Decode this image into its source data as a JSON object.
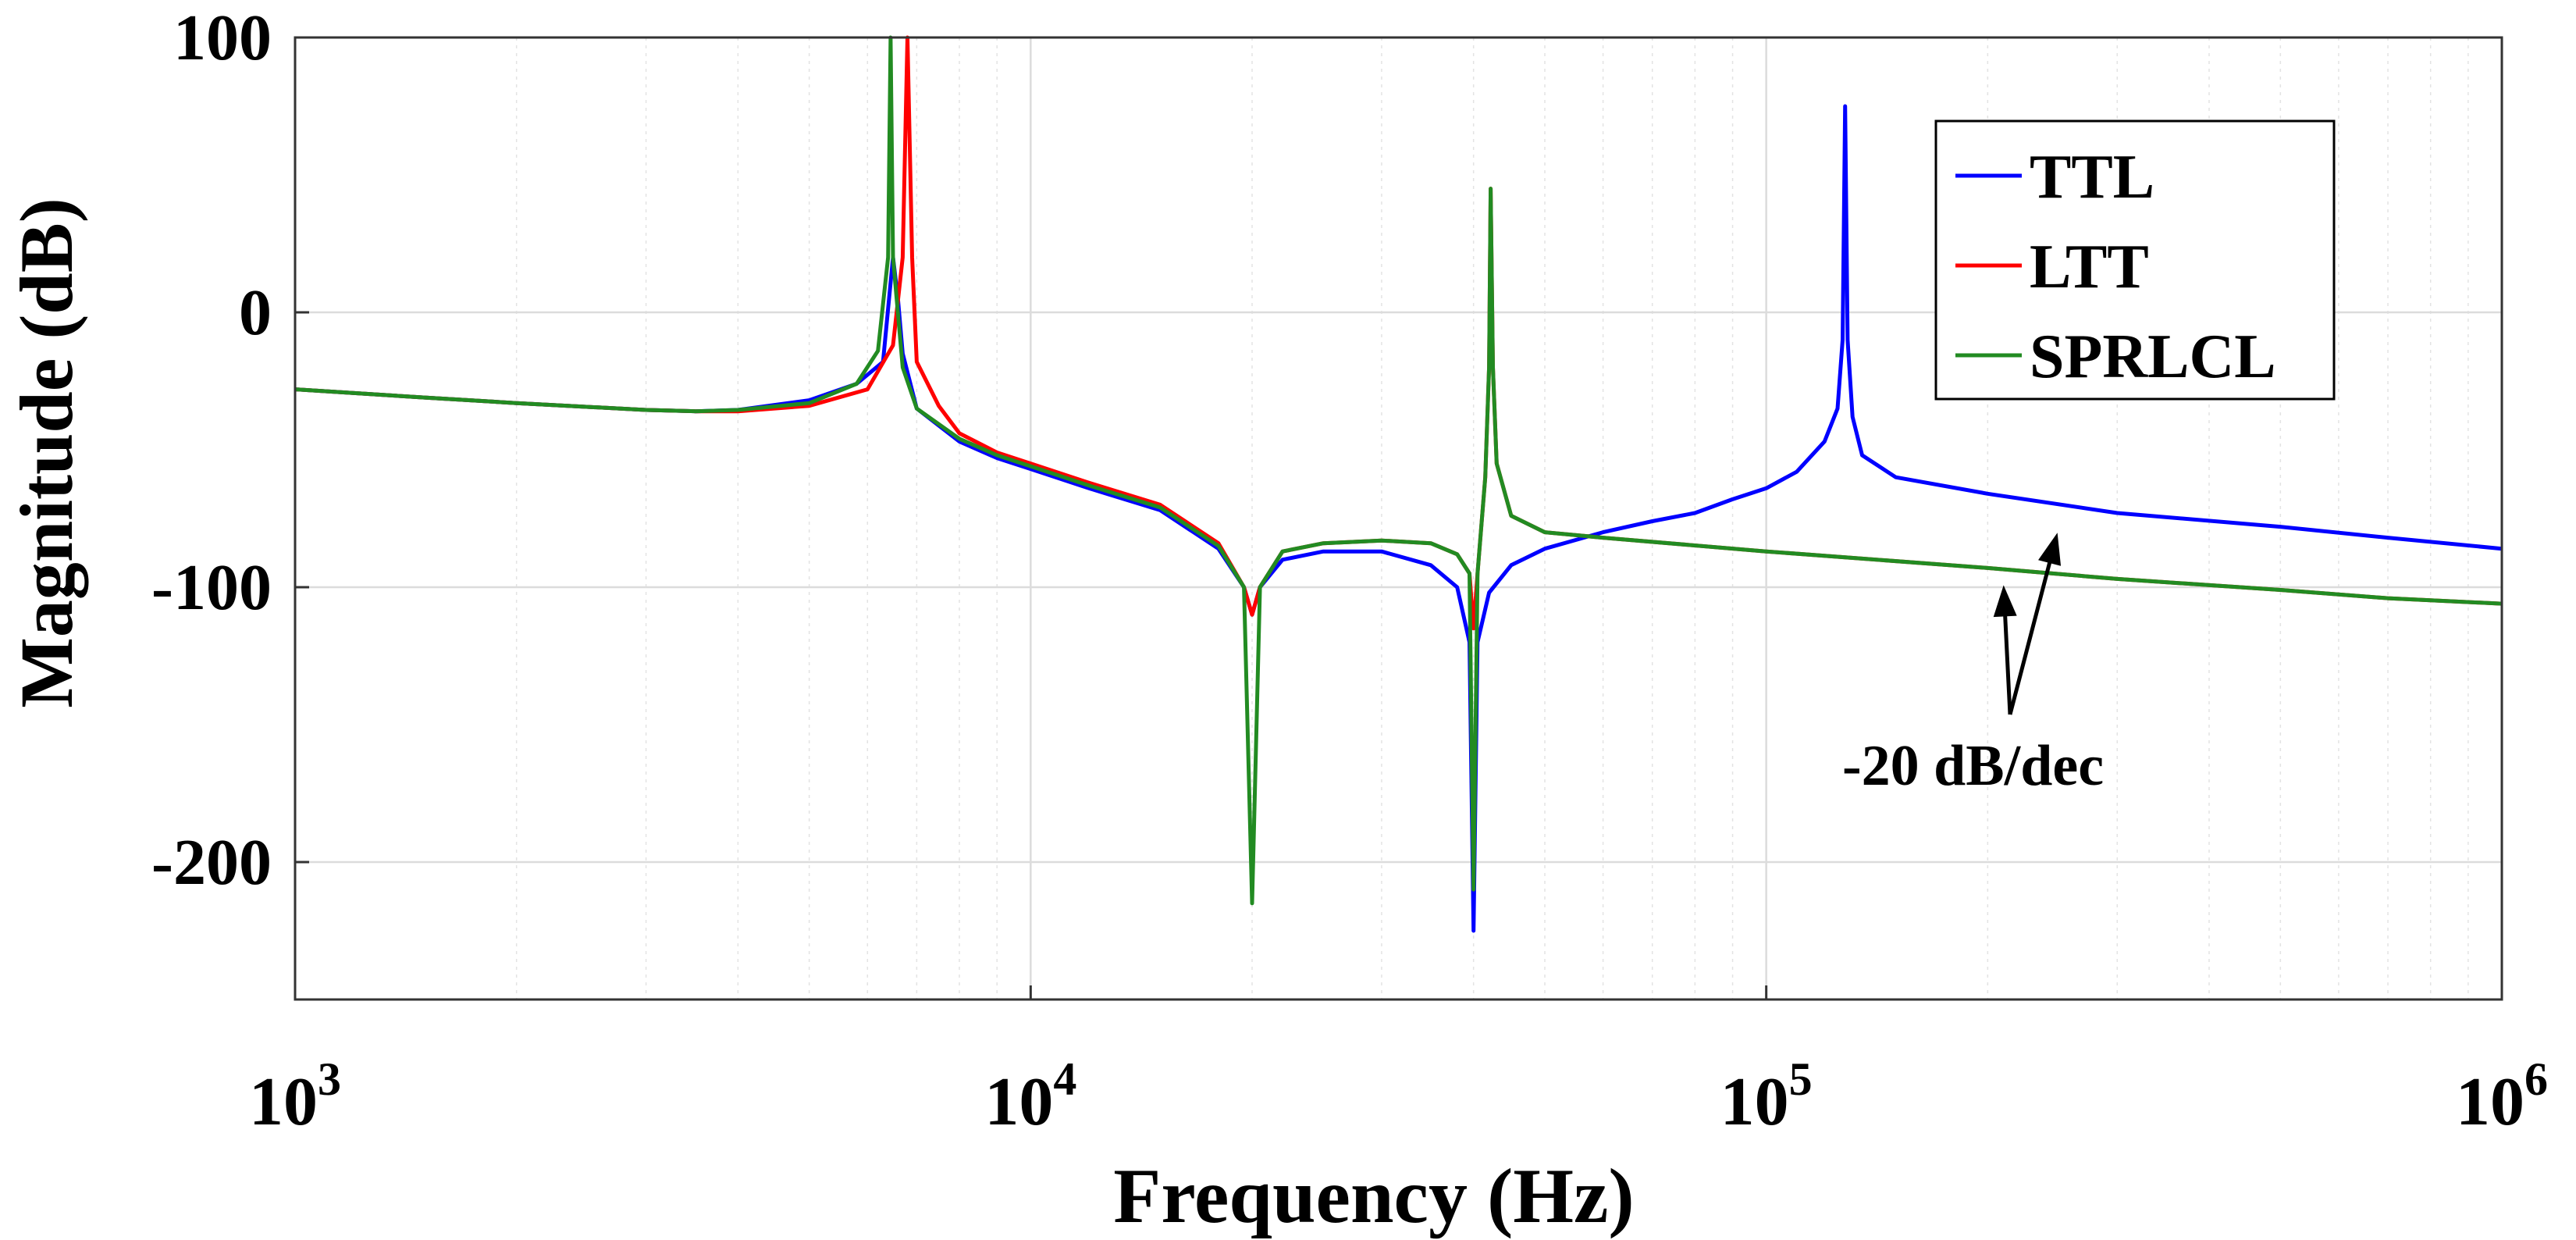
{
  "chart_data": {
    "type": "line",
    "title": "",
    "xlabel": "Frequency (Hz)",
    "ylabel": "Magnitude (dB)",
    "xscale": "log",
    "xlim": [
      1000,
      1000000
    ],
    "ylim": [
      -250,
      100
    ],
    "grid": true,
    "legend_position": "top-right",
    "x_ticks": [
      {
        "value": 1000,
        "base": "10",
        "exp": "3"
      },
      {
        "value": 10000,
        "base": "10",
        "exp": "4"
      },
      {
        "value": 100000,
        "base": "10",
        "exp": "5"
      },
      {
        "value": 1000000,
        "base": "10",
        "exp": "6"
      }
    ],
    "y_ticks": [
      {
        "value": 100,
        "label": "100"
      },
      {
        "value": 0,
        "label": "0"
      },
      {
        "value": -100,
        "label": "-100"
      },
      {
        "value": -200,
        "label": "-200"
      }
    ],
    "series": [
      {
        "name": "TTL",
        "color": "#0000ff",
        "x": [
          1000,
          1500,
          2000,
          3000,
          3500,
          4000,
          5000,
          5800,
          6300,
          6500,
          6600,
          6700,
          7000,
          8000,
          9000,
          10000,
          12000,
          15000,
          18000,
          19500,
          20000,
          20500,
          22000,
          25000,
          30000,
          35000,
          38000,
          39500,
          40000,
          40500,
          42000,
          45000,
          50000,
          60000,
          70000,
          80000,
          90000,
          100000,
          110000,
          120000,
          125000,
          127000,
          128000,
          129000,
          131000,
          135000,
          150000,
          200000,
          300000,
          500000,
          700000,
          1000000
        ],
        "y": [
          -28,
          -31,
          -33,
          -35.5,
          -36,
          -35.5,
          -32,
          -26,
          -18,
          20,
          5,
          -15,
          -35,
          -47,
          -53,
          -57,
          -64,
          -72,
          -86,
          -100,
          -110,
          -100,
          -90,
          -87,
          -87,
          -92,
          -100,
          -120,
          -225,
          -120,
          -102,
          -92,
          -86,
          -80,
          -76,
          -73,
          -68,
          -64,
          -58,
          -47,
          -35,
          -10,
          75,
          -10,
          -38,
          -52,
          -60,
          -66,
          -73,
          -78,
          -82,
          -86
        ]
      },
      {
        "name": "LTT",
        "color": "#ff0000",
        "x": [
          1000,
          1500,
          2000,
          3000,
          3500,
          4000,
          5000,
          6000,
          6500,
          6700,
          6800,
          6900,
          7000,
          7500,
          8000,
          9000,
          10000,
          12000,
          15000,
          18000,
          19500,
          20000,
          20500,
          22000,
          25000,
          30000,
          35000,
          38000,
          39500,
          40000,
          40500,
          41500,
          42000,
          42200,
          42500,
          43000,
          45000,
          50000,
          60000,
          100000,
          200000,
          300000,
          500000,
          700000,
          1000000
        ],
        "y": [
          -28,
          -31,
          -33,
          -35.5,
          -36,
          -36,
          -34,
          -28,
          -12,
          20,
          100,
          20,
          -18,
          -34,
          -44,
          -51,
          -55,
          -62,
          -70,
          -84,
          -100,
          -110,
          -100,
          -87,
          -84,
          -83,
          -84,
          -88,
          -95,
          -115,
          -95,
          -60,
          -20,
          45,
          -20,
          -55,
          -74,
          -80,
          -82,
          -87,
          -93,
          -97,
          -101,
          -104,
          -106
        ]
      },
      {
        "name": "SPRLCL",
        "color": "#228b22",
        "x": [
          1000,
          1500,
          2000,
          3000,
          3500,
          4000,
          5000,
          5800,
          6200,
          6400,
          6450,
          6500,
          6700,
          7000,
          8000,
          9000,
          10000,
          12000,
          15000,
          18000,
          19500,
          20000,
          20500,
          22000,
          25000,
          30000,
          35000,
          38000,
          39500,
          40000,
          40500,
          41500,
          42000,
          42200,
          42500,
          43000,
          45000,
          50000,
          60000,
          100000,
          200000,
          300000,
          500000,
          700000,
          1000000
        ],
        "y": [
          -28,
          -31,
          -33,
          -35.5,
          -36,
          -35.5,
          -33,
          -26,
          -14,
          20,
          100,
          20,
          -20,
          -35,
          -46,
          -52,
          -56,
          -63,
          -71,
          -85,
          -100,
          -215,
          -100,
          -87,
          -84,
          -83,
          -84,
          -88,
          -95,
          -210,
          -95,
          -60,
          -20,
          45,
          -20,
          -55,
          -74,
          -80,
          -82,
          -87,
          -93,
          -97,
          -101,
          -104,
          -106
        ]
      }
    ],
    "annotations": [
      {
        "text": "-20 dB/dec",
        "arrows_to": [
          {
            "x": 210000,
            "y": -97
          },
          {
            "x": 250000,
            "y": -78
          }
        ]
      }
    ]
  }
}
